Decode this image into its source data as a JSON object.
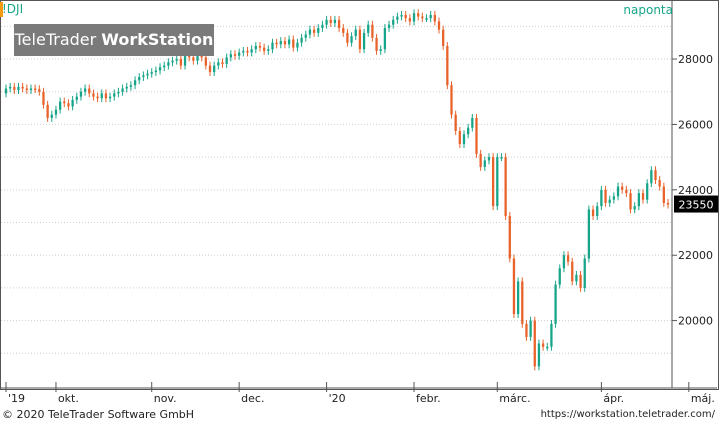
{
  "header": {
    "symbol": "!DJI",
    "interval": "naponta",
    "logo_part1": "TeleTrader ",
    "logo_part2": "WorkStation"
  },
  "footer": {
    "copyright": "© 2020 TeleTrader Software GmbH",
    "url": "https://workstation.teletrader.com/"
  },
  "chart_data": {
    "type": "candlestick",
    "ylim": [
      18000,
      29500
    ],
    "y_ticks": [
      20000,
      22000,
      24000,
      26000,
      28000
    ],
    "x_ticks": [
      {
        "label": "'19",
        "i": 0
      },
      {
        "label": "okt.",
        "i": 12
      },
      {
        "label": "nov.",
        "i": 35
      },
      {
        "label": "dec.",
        "i": 56
      },
      {
        "label": "'20",
        "i": 77
      },
      {
        "label": "febr.",
        "i": 98
      },
      {
        "label": "márc.",
        "i": 118
      },
      {
        "label": "ápr.",
        "i": 143
      },
      {
        "label": "máj.",
        "i": 164
      }
    ],
    "last_price": "23550",
    "up_color": "#17a589",
    "down_color": "#e8622a",
    "close": [
      27100,
      27150,
      27050,
      27150,
      27100,
      27050,
      27100,
      27080,
      27000,
      26600,
      26200,
      26300,
      26450,
      26700,
      26650,
      26550,
      26750,
      26850,
      27000,
      27100,
      26950,
      26850,
      26800,
      26950,
      26800,
      26850,
      26950,
      27000,
      27100,
      27150,
      27200,
      27350,
      27450,
      27500,
      27550,
      27600,
      27650,
      27750,
      27800,
      27900,
      27950,
      28000,
      27800,
      28100,
      28050,
      27950,
      28100,
      28050,
      27800,
      27600,
      27800,
      27900,
      27850,
      28050,
      28150,
      28100,
      28200,
      28250,
      28200,
      28300,
      28400,
      28350,
      28250,
      28300,
      28500,
      28450,
      28550,
      28450,
      28600,
      28350,
      28500,
      28650,
      28750,
      28900,
      28800,
      28950,
      29050,
      29200,
      29100,
      29200,
      28950,
      28800,
      28500,
      28700,
      28900,
      28300,
      28800,
      29050,
      28650,
      28250,
      28300,
      28950,
      29050,
      29200,
      29300,
      29350,
      29250,
      29150,
      29400,
      29300,
      29250,
      29250,
      29350,
      29150,
      28900,
      28400,
      27200,
      26300,
      25800,
      25400,
      25700,
      25900,
      26200,
      25100,
      24700,
      24900,
      25000,
      23500,
      25000,
      25000,
      23200,
      21900,
      20200,
      21200,
      19900,
      19500,
      20000,
      18600,
      19300,
      19200,
      19200,
      19900,
      21100,
      21600,
      22000,
      21800,
      21200,
      21400,
      21000,
      21900,
      23400,
      23200,
      23500,
      24000,
      23600,
      23700,
      23800,
      24100,
      24000,
      23900,
      23400,
      23500,
      23900,
      23700,
      24200,
      24600,
      24300,
      24100,
      23600,
      23550
    ],
    "open": [
      26950,
      27100,
      27150,
      27050,
      27150,
      27100,
      27050,
      27100,
      27080,
      27000,
      26600,
      26200,
      26300,
      26450,
      26700,
      26650,
      26550,
      26750,
      26850,
      27000,
      27100,
      26950,
      26850,
      26800,
      26950,
      26800,
      26850,
      26950,
      27000,
      27100,
      27150,
      27200,
      27350,
      27450,
      27500,
      27550,
      27600,
      27650,
      27750,
      27800,
      27900,
      27950,
      28000,
      27800,
      28100,
      28050,
      27950,
      28100,
      28050,
      27800,
      27600,
      27800,
      27900,
      27850,
      28050,
      28150,
      28100,
      28200,
      28250,
      28200,
      28300,
      28400,
      28350,
      28250,
      28300,
      28500,
      28450,
      28550,
      28450,
      28600,
      28350,
      28500,
      28650,
      28750,
      28900,
      28800,
      28950,
      29050,
      29200,
      29100,
      29200,
      28950,
      28800,
      28500,
      28700,
      28900,
      28300,
      28800,
      29050,
      28650,
      28250,
      28300,
      28950,
      29050,
      29200,
      29300,
      29350,
      29250,
      29150,
      29400,
      29300,
      29250,
      29250,
      29350,
      29150,
      28900,
      28400,
      27200,
      26300,
      25800,
      25400,
      25700,
      25900,
      26200,
      25100,
      24700,
      24900,
      25000,
      23500,
      25000,
      25000,
      23200,
      21900,
      20200,
      21200,
      19900,
      19500,
      20000,
      18600,
      19300,
      19200,
      19200,
      19900,
      21100,
      21600,
      22000,
      21800,
      21200,
      21400,
      21000,
      21900,
      23400,
      23200,
      23500,
      24000,
      23600,
      23700,
      23800,
      24100,
      24000,
      23900,
      23400,
      23500,
      23900,
      23700,
      24200,
      24600,
      24300,
      24100,
      23600
    ]
  }
}
